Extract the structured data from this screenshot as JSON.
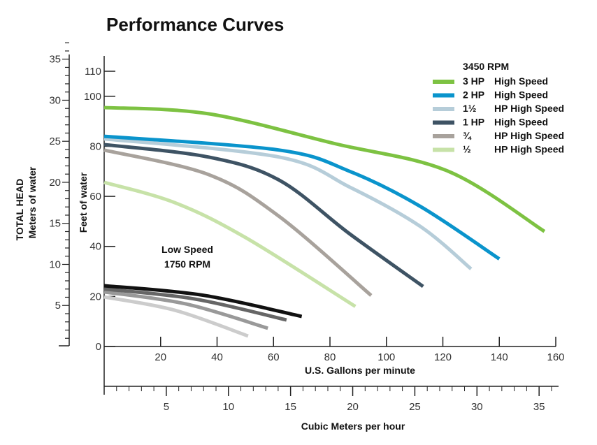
{
  "chart_data": {
    "type": "line",
    "title": "Performance Curves",
    "xlabel": "U.S. Gallons per minute",
    "xlabel_secondary": "Cubic Meters per hour",
    "ylabel": "Feet of water",
    "ylabel_secondary_1": "TOTAL HEAD",
    "ylabel_secondary_2": "Meters of water",
    "xlim": [
      0,
      160
    ],
    "ylim": [
      0,
      110
    ],
    "x_ticks": [
      20,
      40,
      60,
      80,
      100,
      120,
      140,
      160
    ],
    "y_ticks": [
      0,
      20,
      40,
      60,
      80,
      100,
      110
    ],
    "x2_ticks": [
      5,
      10,
      15,
      20,
      25,
      30,
      35
    ],
    "y2_ticks": [
      5,
      10,
      15,
      20,
      25,
      30,
      35
    ],
    "grid": false,
    "legend_title": "3450 RPM",
    "legend_placement": "top-right",
    "low_speed_label_1": "Low Speed",
    "low_speed_label_2": "1750 RPM",
    "series": [
      {
        "name": "3 HP  High Speed",
        "hp": "3 HP",
        "desc": "High Speed",
        "color": "#7dc242",
        "x": [
          0,
          37,
          82,
          122,
          156
        ],
        "y": [
          95.5,
          93,
          81,
          70,
          46
        ]
      },
      {
        "name": "2 HP  High Speed",
        "hp": "2 HP",
        "desc": "High Speed",
        "color": "#0a94cc",
        "x": [
          0,
          62,
          87,
          112,
          140
        ],
        "y": [
          84,
          78.5,
          70,
          56,
          35
        ]
      },
      {
        "name": "1½ HP High Speed",
        "hp": "1½",
        "desc": "HP High Speed",
        "color": "#b6cdd9",
        "x": [
          0,
          62,
          87,
          112,
          130
        ],
        "y": [
          83,
          75.7,
          63.7,
          48,
          31
        ]
      },
      {
        "name": "1 HP  High Speed",
        "hp": "1 HP",
        "desc": "High Speed",
        "color": "#3e5364",
        "x": [
          0,
          37,
          62,
          87,
          113
        ],
        "y": [
          80.7,
          75.7,
          66.5,
          45,
          24
        ]
      },
      {
        "name": "¾ HP High Speed",
        "hp": "¾",
        "desc": "HP High Speed",
        "color": "#a8a29c",
        "x": [
          0,
          37,
          62,
          94.6
        ],
        "y": [
          78.5,
          68.7,
          52,
          20.4
        ]
      },
      {
        "name": "½ HP High Speed",
        "hp": "½",
        "desc": "HP High Speed",
        "color": "#c7e2a8",
        "x": [
          0,
          25,
          50,
          89
        ],
        "y": [
          65.6,
          57.5,
          43.6,
          16
        ]
      }
    ],
    "low_speed_series": [
      {
        "color": "#111111",
        "x": [
          0,
          35,
          70
        ],
        "y": [
          24.3,
          20.5,
          12
        ]
      },
      {
        "color": "#666666",
        "x": [
          0,
          32,
          64.6
        ],
        "y": [
          23,
          19,
          10.6
        ]
      },
      {
        "color": "#999999",
        "x": [
          0,
          29,
          58
        ],
        "y": [
          21.8,
          17,
          7.3
        ]
      },
      {
        "color": "#cccccc",
        "x": [
          0,
          25,
          51
        ],
        "y": [
          19.8,
          14.5,
          4.2
        ]
      }
    ]
  }
}
